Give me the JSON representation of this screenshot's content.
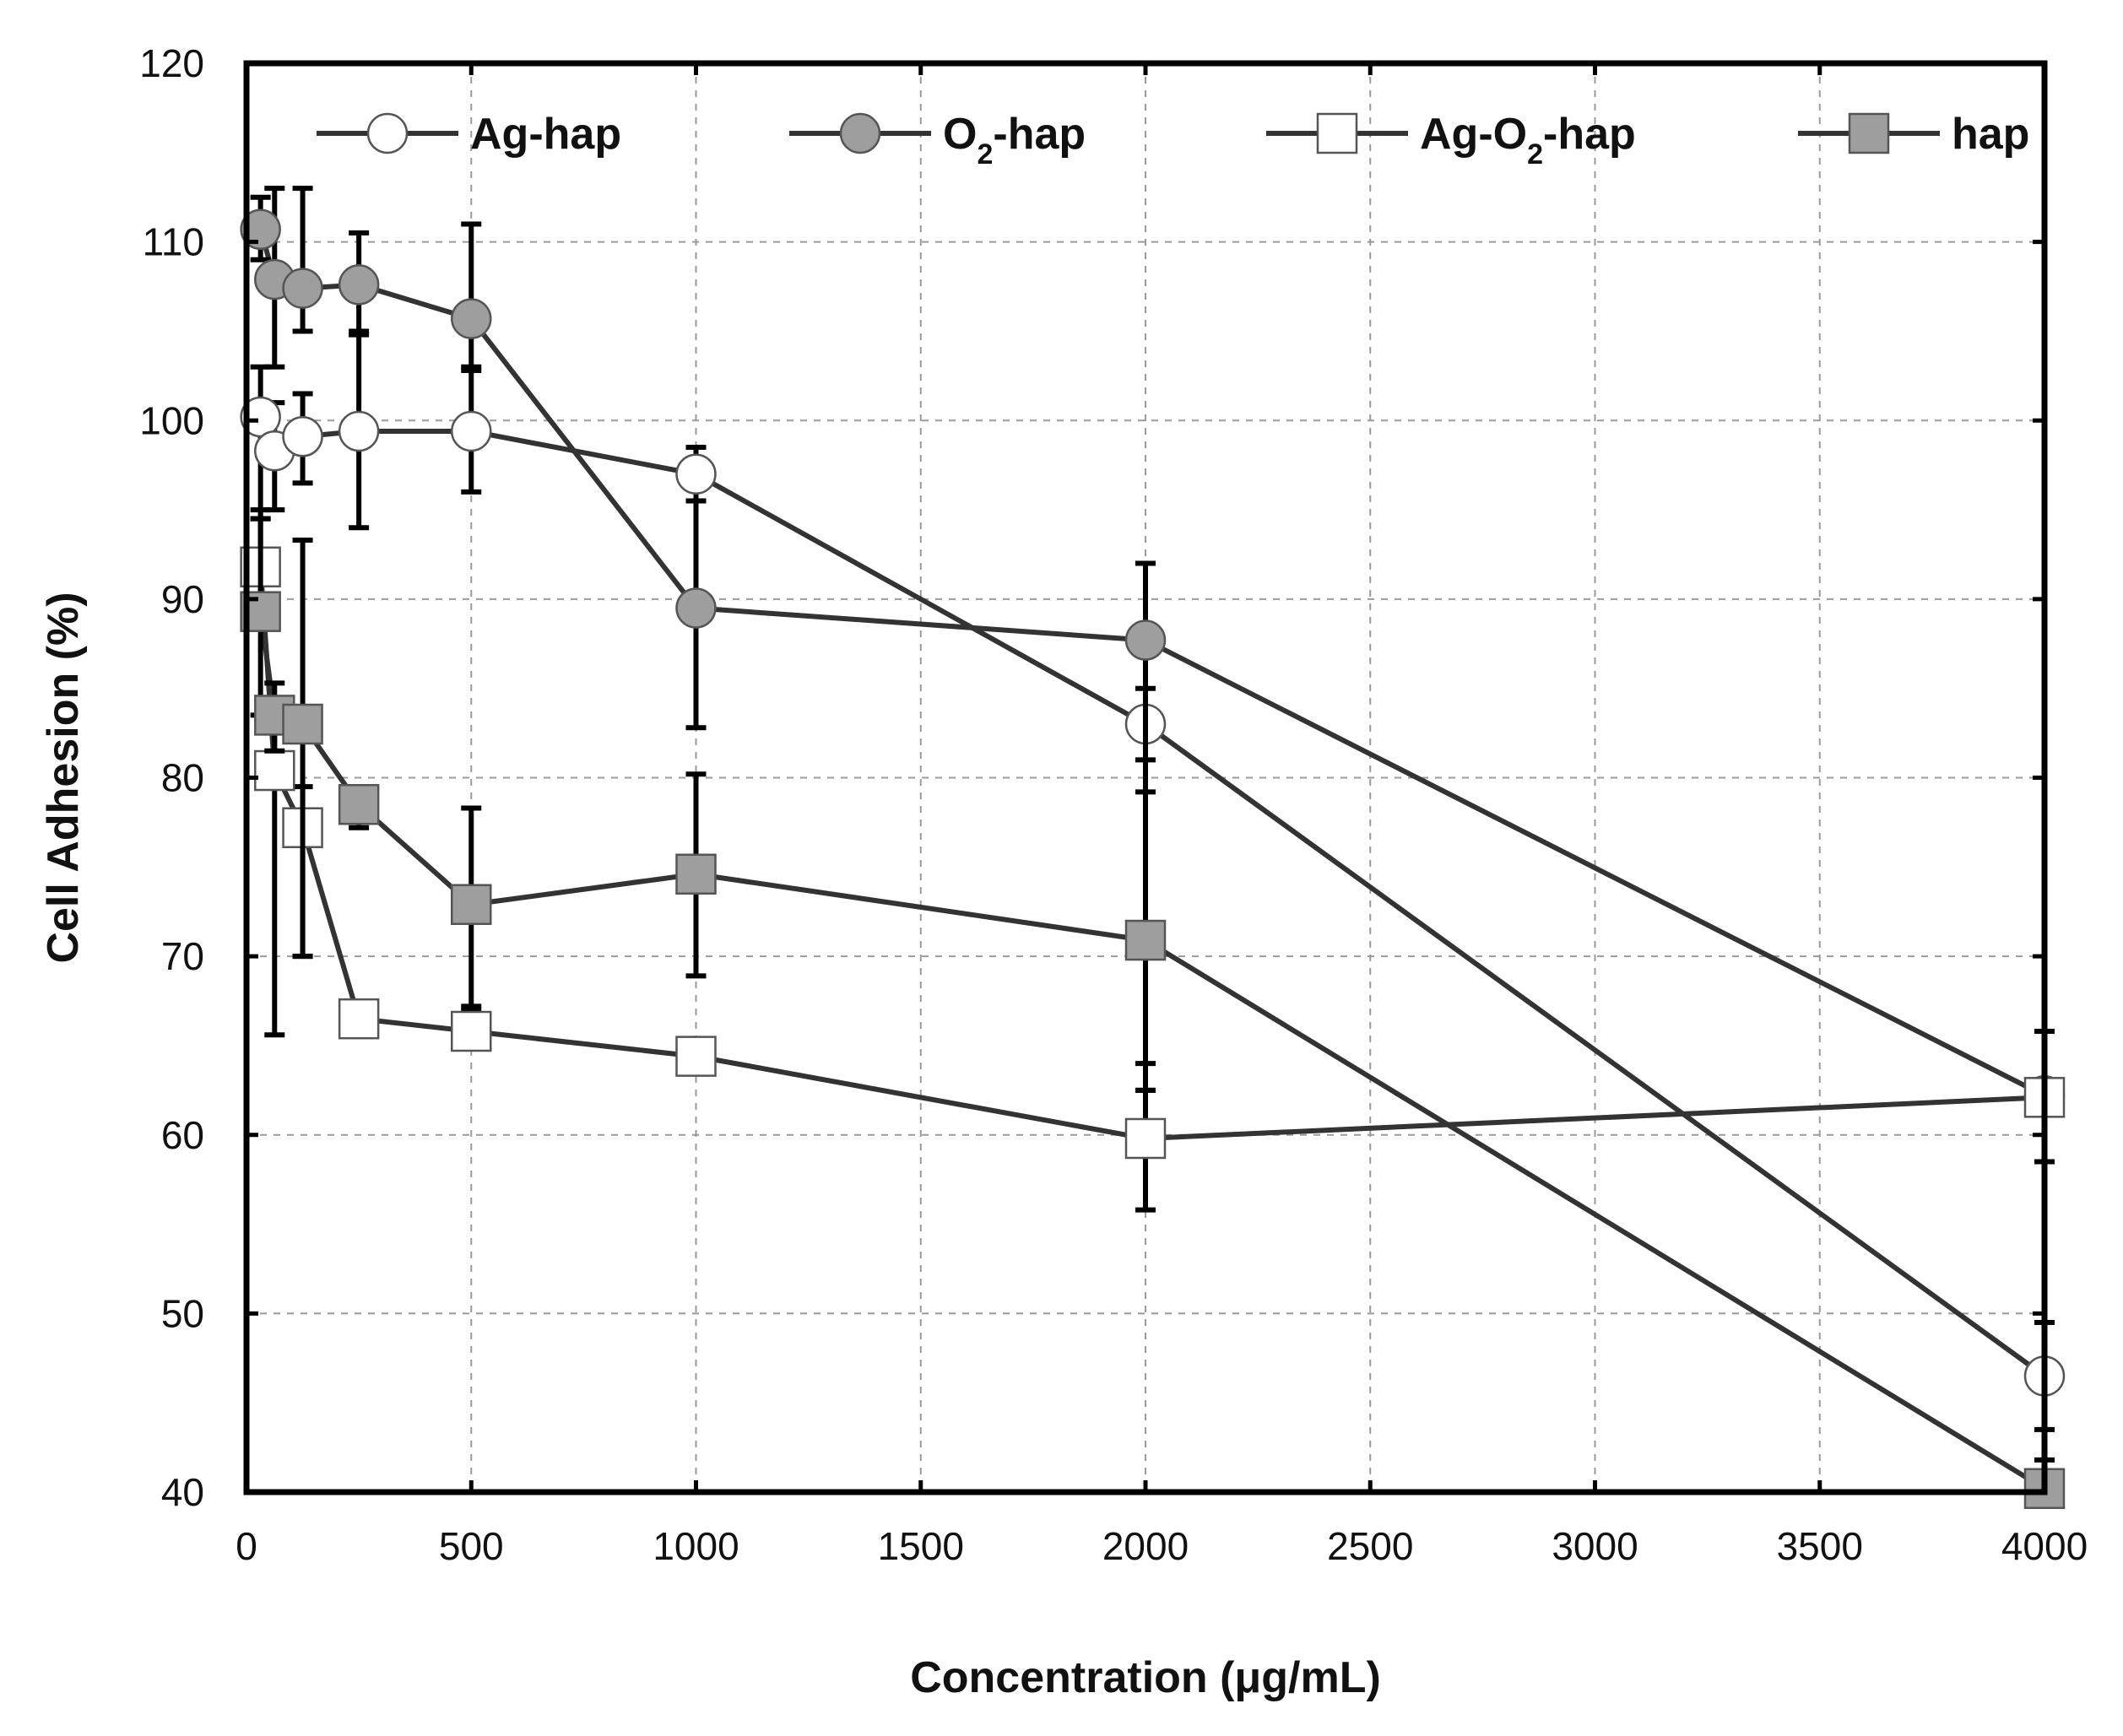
{
  "chart_data": {
    "type": "line",
    "xlabel": "Concentration (μg/mL)",
    "ylabel": "Cell Adhesion (%)",
    "xlim": [
      0,
      4000
    ],
    "ylim": [
      40,
      120
    ],
    "xticks": [
      0,
      500,
      1000,
      1500,
      2000,
      2500,
      3000,
      3500,
      4000
    ],
    "yticks": [
      40,
      50,
      60,
      70,
      80,
      90,
      100,
      110,
      120
    ],
    "xtick_labels": [
      "0",
      "500",
      "1000",
      "1500",
      "2000",
      "2500",
      "3000",
      "3500",
      "4000"
    ],
    "ytick_labels": [
      "40",
      "50",
      "60",
      "70",
      "80",
      "90",
      "100",
      "110",
      "120"
    ],
    "grid": true,
    "legend_position": "top",
    "series": [
      {
        "name": "Ag-hap",
        "legend_main": "Ag-hap",
        "legend_sub": "",
        "legend_suffix": "",
        "marker": "circle",
        "fill": "#ffffff",
        "x": [
          31.25,
          62.5,
          125,
          250,
          500,
          1000,
          2000,
          4000
        ],
        "values": [
          100.2,
          98.3,
          99.1,
          99.4,
          99.4,
          97.0,
          83.0,
          46.5
        ],
        "err_upper": [
          103.0,
          101.0,
          101.5,
          104.8,
          102.8,
          98.5,
          85.0,
          49.5
        ],
        "err_lower": [
          94.5,
          95.0,
          96.5,
          94.0,
          96.0,
          95.5,
          81.0,
          43.5
        ]
      },
      {
        "name": "O2-hap",
        "legend_main": "O",
        "legend_sub": "2",
        "legend_suffix": "-hap",
        "marker": "circle",
        "fill": "#9e9e9e",
        "x": [
          31.25,
          62.5,
          125,
          250,
          500,
          1000,
          2000,
          4000
        ],
        "values": [
          110.7,
          107.9,
          107.4,
          107.6,
          105.7,
          89.5,
          87.7,
          62.2
        ],
        "err_upper": [
          112.5,
          113.0,
          113.0,
          110.5,
          111.0,
          95.5,
          92.0,
          65.8
        ],
        "err_lower": [
          109.0,
          103.0,
          105.0,
          105.0,
          103.0,
          82.8,
          64.0,
          58.5
        ]
      },
      {
        "name": "Ag-O2-hap",
        "legend_main": "Ag-O",
        "legend_sub": "2",
        "legend_suffix": "-hap",
        "marker": "square",
        "fill": "#ffffff",
        "x": [
          31.25,
          62.5,
          125,
          250,
          500,
          1000,
          2000,
          4000
        ],
        "values": [
          91.8,
          80.4,
          77.2,
          66.5,
          65.8,
          64.4,
          59.8,
          62.1
        ],
        "err_upper": [
          94.5,
          83.5,
          79.5,
          66.5,
          67.0,
          64.4,
          62.5,
          65.8
        ],
        "err_lower": [
          89.0,
          65.6,
          70.0,
          66.5,
          65.8,
          64.4,
          55.8,
          58.5
        ]
      },
      {
        "name": "hap",
        "legend_main": "hap",
        "legend_sub": "",
        "legend_suffix": "",
        "marker": "square",
        "fill": "#9e9e9e",
        "x": [
          31.25,
          62.5,
          125,
          250,
          500,
          1000,
          2000,
          4000
        ],
        "values": [
          89.3,
          83.5,
          83.0,
          78.5,
          72.9,
          74.6,
          70.9,
          40.2
        ],
        "err_upper": [
          95.0,
          85.3,
          93.3,
          79.5,
          78.3,
          80.2,
          79.2,
          41.8
        ],
        "err_lower": [
          83.5,
          81.5,
          70.0,
          77.2,
          67.2,
          68.9,
          62.5,
          40.0
        ]
      }
    ]
  }
}
